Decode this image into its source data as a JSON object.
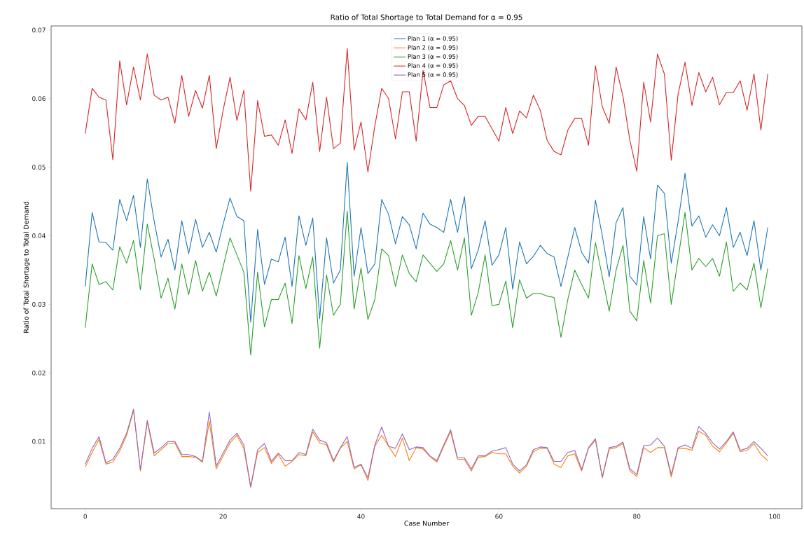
{
  "chart_data": {
    "type": "line",
    "title": "Ratio of Total Shortage to Total Demand for α = 0.95",
    "xlabel": "Case Number",
    "ylabel": "Ratio of Total Shortage to Total Demand",
    "x": [
      0,
      1,
      2,
      3,
      4,
      5,
      6,
      7,
      8,
      9,
      10,
      11,
      12,
      13,
      14,
      15,
      16,
      17,
      18,
      19,
      20,
      21,
      22,
      23,
      24,
      25,
      26,
      27,
      28,
      29,
      30,
      31,
      32,
      33,
      34,
      35,
      36,
      37,
      38,
      39,
      40,
      41,
      42,
      43,
      44,
      45,
      46,
      47,
      48,
      49,
      50,
      51,
      52,
      53,
      54,
      55,
      56,
      57,
      58,
      59,
      60,
      61,
      62,
      63,
      64,
      65,
      66,
      67,
      68,
      69,
      70,
      71,
      72,
      73,
      74,
      75,
      76,
      77,
      78,
      79,
      80,
      81,
      82,
      83,
      84,
      85,
      86,
      87,
      88,
      89,
      90,
      91,
      92,
      93,
      94,
      95,
      96,
      97,
      98,
      99
    ],
    "series": [
      {
        "name": "Plan 1 (α = 0.95)",
        "color": "#1f77b4",
        "values": [
          0.0326,
          0.0434,
          0.0391,
          0.039,
          0.0379,
          0.0453,
          0.0422,
          0.0459,
          0.0383,
          0.0483,
          0.0421,
          0.0369,
          0.0395,
          0.035,
          0.0422,
          0.0374,
          0.0424,
          0.0383,
          0.0405,
          0.0376,
          0.0417,
          0.0455,
          0.0428,
          0.0422,
          0.0274,
          0.0409,
          0.0329,
          0.0366,
          0.0362,
          0.0398,
          0.0326,
          0.0429,
          0.0386,
          0.0426,
          0.0279,
          0.0397,
          0.0331,
          0.035,
          0.0507,
          0.0341,
          0.0412,
          0.0345,
          0.0359,
          0.0453,
          0.0431,
          0.0388,
          0.0428,
          0.0416,
          0.0381,
          0.0433,
          0.0417,
          0.0412,
          0.0405,
          0.0453,
          0.0405,
          0.0457,
          0.0352,
          0.0379,
          0.0422,
          0.0357,
          0.0372,
          0.0412,
          0.0322,
          0.0391,
          0.0359,
          0.037,
          0.0386,
          0.0374,
          0.0369,
          0.0326,
          0.0369,
          0.0412,
          0.0376,
          0.036,
          0.0452,
          0.04,
          0.034,
          0.0419,
          0.0441,
          0.0341,
          0.0328,
          0.0428,
          0.0366,
          0.0474,
          0.0462,
          0.036,
          0.0421,
          0.0491,
          0.0414,
          0.0429,
          0.0398,
          0.0416,
          0.04,
          0.0441,
          0.0383,
          0.0405,
          0.0371,
          0.0422,
          0.035,
          0.0412
        ]
      },
      {
        "name": "Plan 2 (α = 0.95)",
        "color": "#ff7f0e",
        "values": [
          0.0063,
          0.0084,
          0.0103,
          0.0067,
          0.007,
          0.0086,
          0.0109,
          0.0145,
          0.0057,
          0.0128,
          0.0079,
          0.0088,
          0.0097,
          0.0098,
          0.0078,
          0.0078,
          0.0077,
          0.007,
          0.0129,
          0.006,
          0.0079,
          0.0098,
          0.0109,
          0.009,
          0.0033,
          0.0084,
          0.0091,
          0.0068,
          0.0081,
          0.0064,
          0.0071,
          0.0081,
          0.0079,
          0.0114,
          0.0098,
          0.0095,
          0.007,
          0.009,
          0.01,
          0.006,
          0.0066,
          0.0043,
          0.0093,
          0.0109,
          0.0093,
          0.0078,
          0.0105,
          0.0072,
          0.0091,
          0.0089,
          0.0078,
          0.007,
          0.0093,
          0.0114,
          0.0074,
          0.0074,
          0.0057,
          0.0077,
          0.0078,
          0.0084,
          0.0082,
          0.0082,
          0.0064,
          0.0054,
          0.0064,
          0.0085,
          0.009,
          0.009,
          0.0067,
          0.0062,
          0.0079,
          0.0082,
          0.0057,
          0.009,
          0.0102,
          0.0047,
          0.0089,
          0.0091,
          0.0097,
          0.0057,
          0.0049,
          0.0091,
          0.0084,
          0.0091,
          0.0091,
          0.0048,
          0.009,
          0.009,
          0.0087,
          0.0115,
          0.0109,
          0.0093,
          0.0085,
          0.0098,
          0.0112,
          0.0085,
          0.0087,
          0.0097,
          0.0081,
          0.0072
        ]
      },
      {
        "name": "Plan 3 (α = 0.95)",
        "color": "#2ca02c",
        "values": [
          0.0266,
          0.0359,
          0.0329,
          0.0333,
          0.0321,
          0.0384,
          0.036,
          0.0393,
          0.0321,
          0.0417,
          0.0366,
          0.0309,
          0.0338,
          0.0293,
          0.0359,
          0.0314,
          0.0364,
          0.0319,
          0.0347,
          0.0312,
          0.0355,
          0.0397,
          0.0372,
          0.0347,
          0.0226,
          0.0347,
          0.0267,
          0.0307,
          0.0307,
          0.0331,
          0.0272,
          0.0371,
          0.0323,
          0.0369,
          0.0236,
          0.0343,
          0.0284,
          0.03,
          0.0436,
          0.0293,
          0.0353,
          0.0278,
          0.0307,
          0.0381,
          0.0371,
          0.0326,
          0.0372,
          0.0345,
          0.0333,
          0.0372,
          0.036,
          0.0348,
          0.0359,
          0.0393,
          0.035,
          0.0397,
          0.0284,
          0.0317,
          0.0372,
          0.0298,
          0.03,
          0.0334,
          0.0266,
          0.0336,
          0.0309,
          0.0316,
          0.0316,
          0.0312,
          0.031,
          0.0252,
          0.0307,
          0.035,
          0.0329,
          0.0309,
          0.039,
          0.034,
          0.029,
          0.035,
          0.0386,
          0.029,
          0.0276,
          0.0364,
          0.0302,
          0.04,
          0.0403,
          0.03,
          0.0367,
          0.0434,
          0.035,
          0.0367,
          0.0355,
          0.0367,
          0.0341,
          0.0391,
          0.0319,
          0.0331,
          0.0321,
          0.036,
          0.0295,
          0.0352
        ]
      },
      {
        "name": "Plan 4 (α = 0.95)",
        "color": "#d62728",
        "values": [
          0.0549,
          0.0615,
          0.0602,
          0.0598,
          0.0511,
          0.0655,
          0.0591,
          0.0646,
          0.0598,
          0.0665,
          0.0605,
          0.0598,
          0.0602,
          0.0564,
          0.0634,
          0.0574,
          0.0612,
          0.0586,
          0.0634,
          0.0527,
          0.0583,
          0.0631,
          0.0568,
          0.0612,
          0.0465,
          0.0597,
          0.0545,
          0.0547,
          0.0532,
          0.0569,
          0.052,
          0.0585,
          0.0569,
          0.0624,
          0.0523,
          0.0602,
          0.0527,
          0.0535,
          0.0673,
          0.0525,
          0.0566,
          0.0493,
          0.056,
          0.0615,
          0.06,
          0.0541,
          0.061,
          0.061,
          0.0538,
          0.0641,
          0.0587,
          0.0587,
          0.062,
          0.0626,
          0.06,
          0.059,
          0.0561,
          0.0574,
          0.0574,
          0.0556,
          0.0538,
          0.0587,
          0.0549,
          0.0582,
          0.0572,
          0.0605,
          0.0583,
          0.0539,
          0.0523,
          0.0518,
          0.0554,
          0.0571,
          0.0571,
          0.0532,
          0.0648,
          0.0588,
          0.0564,
          0.0646,
          0.0603,
          0.0539,
          0.0494,
          0.0624,
          0.0566,
          0.0665,
          0.0636,
          0.051,
          0.0607,
          0.0653,
          0.059,
          0.0638,
          0.061,
          0.0631,
          0.0591,
          0.0609,
          0.0609,
          0.0626,
          0.0583,
          0.0636,
          0.0554,
          0.0636
        ]
      },
      {
        "name": "Plan 5 (α = 0.95)",
        "color": "#9467bd",
        "values": [
          0.0067,
          0.009,
          0.0107,
          0.0069,
          0.0074,
          0.009,
          0.0112,
          0.0147,
          0.0059,
          0.0131,
          0.0083,
          0.0091,
          0.01,
          0.01,
          0.0081,
          0.0081,
          0.0078,
          0.0071,
          0.0143,
          0.0064,
          0.0083,
          0.0102,
          0.0112,
          0.0095,
          0.0034,
          0.0088,
          0.0097,
          0.0071,
          0.0083,
          0.0072,
          0.0072,
          0.0084,
          0.0081,
          0.0118,
          0.0102,
          0.0098,
          0.0072,
          0.0091,
          0.0107,
          0.0062,
          0.0067,
          0.0047,
          0.0095,
          0.0121,
          0.0093,
          0.009,
          0.0111,
          0.0088,
          0.0092,
          0.0091,
          0.0079,
          0.0072,
          0.0095,
          0.0117,
          0.0076,
          0.0076,
          0.006,
          0.0079,
          0.0079,
          0.0086,
          0.0088,
          0.0091,
          0.0067,
          0.0057,
          0.0066,
          0.0088,
          0.0092,
          0.0091,
          0.0071,
          0.0071,
          0.0084,
          0.0087,
          0.0059,
          0.0091,
          0.0104,
          0.0048,
          0.0091,
          0.0093,
          0.0099,
          0.006,
          0.0052,
          0.0094,
          0.0095,
          0.0105,
          0.0093,
          0.0052,
          0.0091,
          0.0095,
          0.009,
          0.0122,
          0.0112,
          0.0098,
          0.0089,
          0.01,
          0.0114,
          0.0087,
          0.009,
          0.01,
          0.009,
          0.0079
        ]
      }
    ],
    "xlim": [
      -4.95,
      103.95
    ],
    "ylim": [
      0.0002,
      0.0706
    ],
    "xticks": [
      0,
      20,
      40,
      60,
      80,
      100
    ],
    "yticks": [
      0.01,
      0.02,
      0.03,
      0.04,
      0.05,
      0.06,
      0.07
    ],
    "legend": "top",
    "line_style": "solid"
  }
}
